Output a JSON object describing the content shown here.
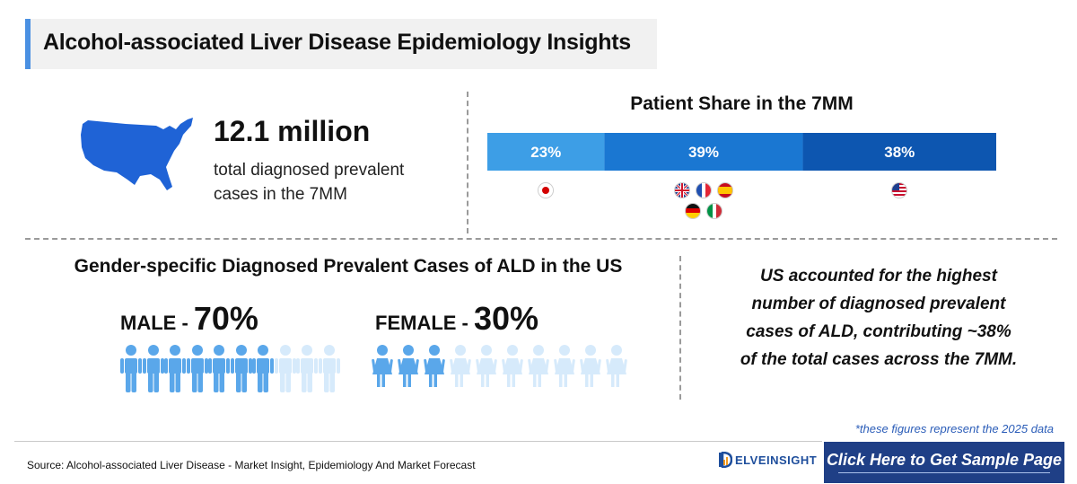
{
  "header": {
    "title": "Alcohol-associated Liver Disease Epidemiology Insights"
  },
  "headline": {
    "value": "12.1 million",
    "description": "total diagnosed prevalent cases in the 7MM"
  },
  "chart_data": [
    {
      "type": "bar",
      "title": "Patient Share in the 7MM",
      "orientation": "horizontal-stacked",
      "unit": "%",
      "segments": [
        {
          "label": "23%",
          "value": 23,
          "color": "#3d9ee6",
          "flags": [
            "jp"
          ]
        },
        {
          "label": "39%",
          "value": 39,
          "color": "#1a77d2",
          "flags": [
            "gb",
            "fr",
            "es",
            "de",
            "it"
          ]
        },
        {
          "label": "38%",
          "value": 38,
          "color": "#0d56b0",
          "flags": [
            "us"
          ]
        }
      ],
      "xlabel": "",
      "ylabel": ""
    },
    {
      "type": "table",
      "title": "Gender-specific Diagnosed Prevalent Cases of ALD in the US",
      "series": [
        {
          "label": "MALE - ",
          "pct_label": "70%",
          "value": 70,
          "icon": "male-person-icon",
          "icons_total": 10,
          "icons_filled": 7
        },
        {
          "label": "FEMALE - ",
          "pct_label": "30%",
          "value": 30,
          "icon": "female-person-icon",
          "icons_total": 10,
          "icons_filled": 3
        }
      ]
    }
  ],
  "insight": {
    "lines": [
      "US accounted for the highest",
      "number of diagnosed prevalent",
      "cases of ALD, contributing ~38%",
      "of the total cases across the 7MM."
    ]
  },
  "note": "*these figures represent the 2025 data",
  "footer": {
    "source": "Source: Alcohol-associated Liver Disease - Market Insight, Epidemiology And Market Forecast",
    "logo_text": "ELVEINSIGHT",
    "cta": "Click Here to Get Sample Page"
  },
  "colors": {
    "accent": "#4a90e2",
    "male_filled": "#5aa7ea",
    "male_faded": "#d6eafb",
    "female_filled": "#5aa7ea",
    "female_faded": "#d6eafb",
    "cta_bg": "#1f3f86",
    "map": "#1f63d6"
  }
}
